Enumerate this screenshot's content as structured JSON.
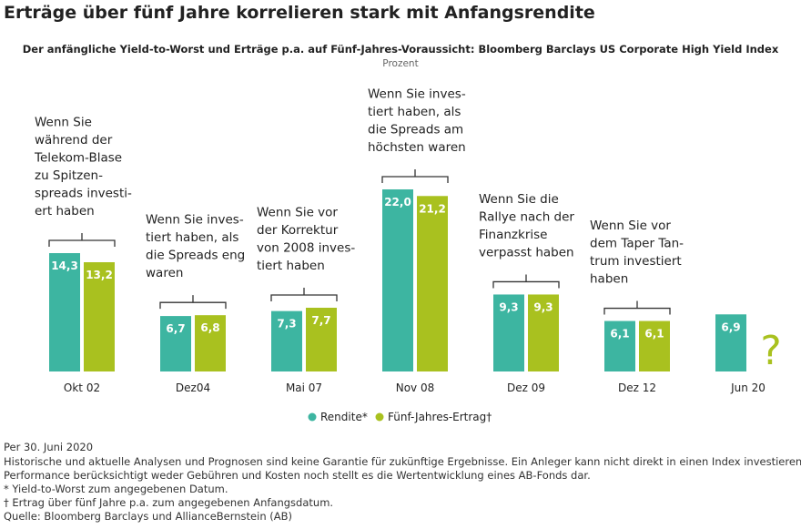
{
  "chart_data": {
    "type": "bar",
    "title": "Erträge über fünf Jahre korrelieren stark mit Anfangsrendite",
    "subtitle": "Der anfängliche Yield-to-Worst und Erträge p.a. auf Fünf-Jahres-Voraussicht: Bloomberg Barclays US Corporate High Yield Index",
    "unit": "Prozent",
    "categories": [
      "Okt 02",
      "Dez04",
      "Mai 07",
      "Nov 08",
      "Dez 09",
      "Dez 12",
      "Jun 20"
    ],
    "series": [
      {
        "name": "Rendite*",
        "color": "#3db5a1",
        "values": [
          14.3,
          6.7,
          7.3,
          22.0,
          9.3,
          6.1,
          6.9
        ],
        "value_labels": [
          "14,3",
          "6,7",
          "7,3",
          "22,0",
          "9,3",
          "6,1",
          "6,9"
        ]
      },
      {
        "name": "Fünf-Jahres-Ertrag†",
        "color": "#a9c11f",
        "values": [
          13.2,
          6.8,
          7.7,
          21.2,
          9.3,
          6.1,
          null
        ],
        "value_labels": [
          "13,2",
          "6,8",
          "7,7",
          "21,2",
          "9,3",
          "6,1",
          null
        ]
      }
    ],
    "annotations": [
      [
        "Wenn Sie",
        "während der",
        "Telekom-Blase",
        "zu Spitzen-",
        "spreads investi-",
        "ert haben"
      ],
      [
        "Wenn Sie inves-",
        "tiert haben, als",
        "die Spreads eng",
        "waren"
      ],
      [
        "Wenn Sie vor",
        "der Korrektur",
        "von 2008 inves-",
        "tiert haben"
      ],
      [
        "Wenn Sie inves-",
        "tiert haben, als",
        "die Spreads am",
        "höchsten waren"
      ],
      [
        "Wenn Sie die",
        "Rallye nach der",
        "Finanzkrise",
        "verpasst haben"
      ],
      [
        "Wenn Sie vor",
        "dem Taper Tan-",
        "trum investiert",
        "haben"
      ],
      null
    ],
    "unknown_marker": "?",
    "notes": [
      "Per 30. Juni 2020",
      "Historische und aktuelle Analysen und Prognosen sind keine Garantie für zukünftige Ergebnisse. Ein Anleger kann nicht direkt in einen Index investieren, und dessen",
      "Performance berücksichtigt weder Gebühren und Kosten noch stellt es die Wertentwicklung eines AB-Fonds dar.",
      "* Yield-to-Worst zum angegebenen Datum.",
      "† Ertrag über fünf Jahre p.a. zum angegebenen Anfangsdatum.",
      "Quelle: Bloomberg Barclays und AllianceBernstein (AB)"
    ]
  }
}
